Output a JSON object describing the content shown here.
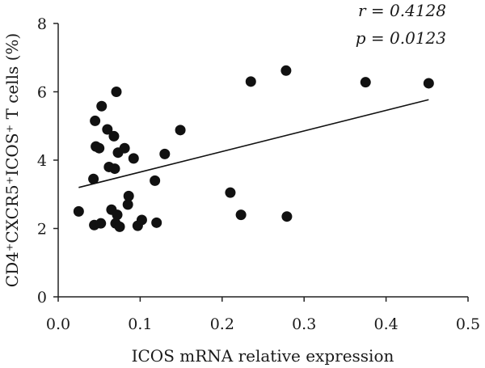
{
  "chart_data": {
    "type": "scatter",
    "xlabel": "ICOS mRNA relative expression",
    "ylabel": "CD4⁺CXCR5⁺ICOS⁺ T cells (%)",
    "xlim": [
      0.0,
      0.5
    ],
    "ylim": [
      0,
      8
    ],
    "xticks": [
      "0.0",
      "0.1",
      "0.2",
      "0.3",
      "0.4",
      "0.5"
    ],
    "yticks": [
      "0",
      "2",
      "4",
      "6",
      "8"
    ],
    "grid": false,
    "points": [
      {
        "x": 0.025,
        "y": 2.5
      },
      {
        "x": 0.043,
        "y": 3.45
      },
      {
        "x": 0.044,
        "y": 2.1
      },
      {
        "x": 0.045,
        "y": 5.15
      },
      {
        "x": 0.046,
        "y": 4.4
      },
      {
        "x": 0.05,
        "y": 4.35
      },
      {
        "x": 0.052,
        "y": 2.15
      },
      {
        "x": 0.053,
        "y": 5.58
      },
      {
        "x": 0.06,
        "y": 4.9
      },
      {
        "x": 0.062,
        "y": 3.8
      },
      {
        "x": 0.065,
        "y": 2.55
      },
      {
        "x": 0.068,
        "y": 4.7
      },
      {
        "x": 0.069,
        "y": 3.75
      },
      {
        "x": 0.07,
        "y": 2.15
      },
      {
        "x": 0.071,
        "y": 6.0
      },
      {
        "x": 0.072,
        "y": 2.4
      },
      {
        "x": 0.073,
        "y": 4.22
      },
      {
        "x": 0.075,
        "y": 2.05
      },
      {
        "x": 0.081,
        "y": 4.35
      },
      {
        "x": 0.085,
        "y": 2.7
      },
      {
        "x": 0.086,
        "y": 2.95
      },
      {
        "x": 0.092,
        "y": 4.05
      },
      {
        "x": 0.097,
        "y": 2.08
      },
      {
        "x": 0.102,
        "y": 2.25
      },
      {
        "x": 0.118,
        "y": 3.4
      },
      {
        "x": 0.12,
        "y": 2.17
      },
      {
        "x": 0.13,
        "y": 4.18
      },
      {
        "x": 0.149,
        "y": 4.88
      },
      {
        "x": 0.21,
        "y": 3.05
      },
      {
        "x": 0.223,
        "y": 2.4
      },
      {
        "x": 0.235,
        "y": 6.3
      },
      {
        "x": 0.278,
        "y": 6.62
      },
      {
        "x": 0.279,
        "y": 2.35
      },
      {
        "x": 0.375,
        "y": 6.28
      },
      {
        "x": 0.452,
        "y": 6.25
      }
    ],
    "trendline": {
      "x1": 0.025,
      "y1": 3.2,
      "x2": 0.452,
      "y2": 5.77
    },
    "annotations": {
      "r": "r = 0.4128",
      "p": "p = 0.0123"
    }
  }
}
